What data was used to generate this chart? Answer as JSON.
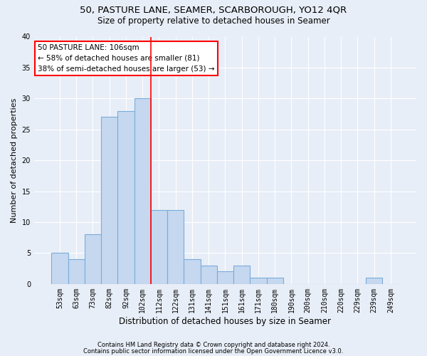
{
  "title1": "50, PASTURE LANE, SEAMER, SCARBOROUGH, YO12 4QR",
  "title2": "Size of property relative to detached houses in Seamer",
  "xlabel": "Distribution of detached houses by size in Seamer",
  "ylabel": "Number of detached properties",
  "categories": [
    "53sqm",
    "63sqm",
    "73sqm",
    "82sqm",
    "92sqm",
    "102sqm",
    "112sqm",
    "122sqm",
    "131sqm",
    "141sqm",
    "151sqm",
    "161sqm",
    "171sqm",
    "180sqm",
    "190sqm",
    "200sqm",
    "210sqm",
    "220sqm",
    "229sqm",
    "239sqm",
    "249sqm"
  ],
  "values": [
    5,
    4,
    8,
    27,
    28,
    30,
    12,
    12,
    4,
    3,
    2,
    3,
    1,
    1,
    0,
    0,
    0,
    0,
    0,
    1,
    0
  ],
  "bar_color": "#c5d8f0",
  "bar_edge_color": "#7aacda",
  "vline_x": 5.5,
  "vline_color": "red",
  "annotation_text": "50 PASTURE LANE: 106sqm\n← 58% of detached houses are smaller (81)\n38% of semi-detached houses are larger (53) →",
  "annotation_box_color": "white",
  "annotation_box_edge_color": "red",
  "ylim": [
    0,
    40
  ],
  "yticks": [
    0,
    5,
    10,
    15,
    20,
    25,
    30,
    35,
    40
  ],
  "footer1": "Contains HM Land Registry data © Crown copyright and database right 2024.",
  "footer2": "Contains public sector information licensed under the Open Government Licence v3.0.",
  "bg_color": "#e8eef7",
  "grid_color": "white",
  "title1_fontsize": 9.5,
  "title2_fontsize": 8.5,
  "xlabel_fontsize": 8.5,
  "ylabel_fontsize": 8,
  "tick_fontsize": 7,
  "annot_fontsize": 7.5,
  "footer_fontsize": 6
}
